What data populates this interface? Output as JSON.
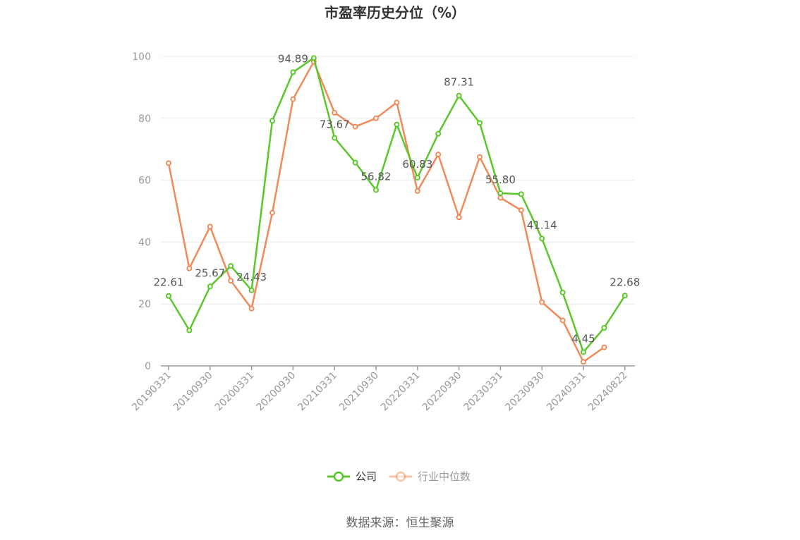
{
  "chart_data": {
    "type": "line",
    "title": "市盈率历史分位（%）",
    "source_note": "数据来源：恒生聚源",
    "ylim": [
      0,
      100
    ],
    "yticks": [
      0,
      20,
      40,
      60,
      80,
      100
    ],
    "x_tick_labels": [
      "20190331",
      "20190930",
      "20200331",
      "20200930",
      "20210331",
      "20210930",
      "20220331",
      "20220930",
      "20230331",
      "20230930",
      "20240331",
      "20240822"
    ],
    "x": [
      "20190331",
      "20190630",
      "20190930",
      "20191231",
      "20200331",
      "20200630",
      "20200930",
      "20201231",
      "20210331",
      "20210630",
      "20210930",
      "20211231",
      "20220331",
      "20220630",
      "20220930",
      "20221231",
      "20230331",
      "20230630",
      "20230930",
      "20231231",
      "20240331",
      "20240630",
      "20240822"
    ],
    "grid": true,
    "legend_position": "bottom-center",
    "series": [
      {
        "name": "公司",
        "color": "#5cc72a",
        "values": [
          22.61,
          11.5,
          25.67,
          32.3,
          24.43,
          79.2,
          94.89,
          99.5,
          73.67,
          65.7,
          56.82,
          78.0,
          60.83,
          75.0,
          87.31,
          78.5,
          55.8,
          55.5,
          41.14,
          23.7,
          4.45,
          12.3,
          22.68
        ],
        "labels": [
          "22.61",
          null,
          "25.67",
          null,
          "24.43",
          null,
          "94.89",
          null,
          "73.67",
          null,
          "56.82",
          null,
          "60.83",
          null,
          "87.31",
          null,
          "55.80",
          null,
          "41.14",
          null,
          "4.45",
          null,
          "22.68"
        ]
      },
      {
        "name": "行业中位数",
        "color": "#f08a5a",
        "values": [
          65.5,
          31.5,
          45.0,
          27.5,
          18.5,
          49.5,
          86.2,
          98.3,
          81.8,
          77.3,
          80.0,
          85.1,
          56.5,
          68.3,
          48.0,
          67.5,
          54.3,
          50.3,
          20.6,
          14.7,
          1.3,
          6.0,
          null
        ]
      }
    ]
  }
}
